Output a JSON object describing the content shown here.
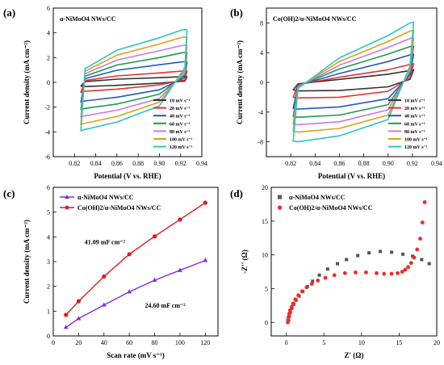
{
  "chart_data": [
    {
      "panel_label": "(a)",
      "type": "line",
      "subtype": "cyclic-voltammetry",
      "title": "α-NiMoO4 NWs/CC",
      "xlabel": "Potential (V vs. RHE)",
      "ylabel": "Current density (mA cm⁻²)",
      "xlim": [
        0.8,
        0.94
      ],
      "ylim": [
        -6,
        6
      ],
      "xticks": [
        0.82,
        0.84,
        0.86,
        0.88,
        0.9,
        0.92,
        0.94
      ],
      "yticks": [
        -6,
        -4,
        -2,
        0,
        2,
        4,
        6
      ],
      "legend_position": "bottom-right",
      "series": [
        {
          "name": "10 mV s⁻¹",
          "color": "#333333",
          "x_range": [
            0.826,
            0.926
          ],
          "anodic": [
            [
              0.826,
              -0.3
            ],
            [
              0.83,
              0.06
            ],
            [
              0.86,
              0.26
            ],
            [
              0.9,
              0.38
            ],
            [
              0.922,
              0.46
            ],
            [
              0.926,
              0.46
            ]
          ],
          "cathodic": [
            [
              0.926,
              0.46
            ],
            [
              0.924,
              0.1
            ],
            [
              0.9,
              -0.06
            ],
            [
              0.86,
              -0.24
            ],
            [
              0.83,
              -0.34
            ],
            [
              0.826,
              -0.3
            ]
          ]
        },
        {
          "name": "20 mV s⁻¹",
          "color": "#e8312a",
          "x_range": [
            0.826,
            0.926
          ],
          "anodic": [
            [
              0.826,
              -0.8
            ],
            [
              0.83,
              0.15
            ],
            [
              0.86,
              0.52
            ],
            [
              0.9,
              0.76
            ],
            [
              0.922,
              0.92
            ],
            [
              0.926,
              0.92
            ]
          ],
          "cathodic": [
            [
              0.926,
              0.92
            ],
            [
              0.924,
              0.2
            ],
            [
              0.9,
              -0.2
            ],
            [
              0.86,
              -0.55
            ],
            [
              0.83,
              -0.72
            ],
            [
              0.826,
              -0.8
            ]
          ]
        },
        {
          "name": "40 mV s⁻¹",
          "color": "#2457c5",
          "x_range": [
            0.826,
            0.926
          ],
          "anodic": [
            [
              0.826,
              -1.6
            ],
            [
              0.83,
              0.3
            ],
            [
              0.86,
              0.98
            ],
            [
              0.9,
              1.42
            ],
            [
              0.922,
              1.66
            ],
            [
              0.926,
              1.66
            ]
          ],
          "cathodic": [
            [
              0.926,
              1.66
            ],
            [
              0.924,
              0.4
            ],
            [
              0.9,
              -0.6
            ],
            [
              0.86,
              -1.2
            ],
            [
              0.83,
              -1.5
            ],
            [
              0.826,
              -1.6
            ]
          ]
        },
        {
          "name": "60 mV s⁻¹",
          "color": "#1e9b4d",
          "x_range": [
            0.826,
            0.926
          ],
          "anodic": [
            [
              0.826,
              -2.2
            ],
            [
              0.83,
              0.5
            ],
            [
              0.86,
              1.4
            ],
            [
              0.9,
              2.0
            ],
            [
              0.922,
              2.4
            ],
            [
              0.926,
              2.4
            ]
          ],
          "cathodic": [
            [
              0.926,
              2.4
            ],
            [
              0.924,
              0.6
            ],
            [
              0.9,
              -0.95
            ],
            [
              0.86,
              -1.75
            ],
            [
              0.83,
              -2.1
            ],
            [
              0.826,
              -2.2
            ]
          ]
        },
        {
          "name": "80 mV s⁻¹",
          "color": "#c47be0",
          "x_range": [
            0.826,
            0.926
          ],
          "anodic": [
            [
              0.826,
              -2.8
            ],
            [
              0.83,
              0.7
            ],
            [
              0.86,
              1.8
            ],
            [
              0.9,
              2.55
            ],
            [
              0.922,
              3.0
            ],
            [
              0.926,
              3.0
            ]
          ],
          "cathodic": [
            [
              0.926,
              3.0
            ],
            [
              0.924,
              0.8
            ],
            [
              0.9,
              -1.3
            ],
            [
              0.86,
              -2.25
            ],
            [
              0.83,
              -2.7
            ],
            [
              0.826,
              -2.8
            ]
          ]
        },
        {
          "name": "100 mV s⁻¹",
          "color": "#d8a21a",
          "x_range": [
            0.826,
            0.926
          ],
          "anodic": [
            [
              0.826,
              -3.4
            ],
            [
              0.83,
              0.9
            ],
            [
              0.86,
              2.2
            ],
            [
              0.9,
              3.1
            ],
            [
              0.922,
              3.65
            ],
            [
              0.926,
              3.65
            ]
          ],
          "cathodic": [
            [
              0.926,
              3.65
            ],
            [
              0.924,
              1.0
            ],
            [
              0.9,
              -1.6
            ],
            [
              0.86,
              -2.75
            ],
            [
              0.83,
              -3.3
            ],
            [
              0.826,
              -3.4
            ]
          ]
        },
        {
          "name": "120 mV s⁻¹",
          "color": "#2ec4c4",
          "x_range": [
            0.826,
            0.926
          ],
          "anodic": [
            [
              0.826,
              -3.9
            ],
            [
              0.83,
              1.1
            ],
            [
              0.86,
              2.6
            ],
            [
              0.9,
              3.6
            ],
            [
              0.922,
              4.25
            ],
            [
              0.926,
              4.25
            ]
          ],
          "cathodic": [
            [
              0.926,
              4.25
            ],
            [
              0.924,
              1.2
            ],
            [
              0.9,
              -1.9
            ],
            [
              0.86,
              -3.2
            ],
            [
              0.83,
              -3.8
            ],
            [
              0.826,
              -3.9
            ]
          ]
        }
      ]
    },
    {
      "panel_label": "(b)",
      "type": "line",
      "subtype": "cyclic-voltammetry",
      "title": "Co(OH)2/α-NiMoO4 NWs/CC",
      "xlabel": "Potential (V vs. RHE)",
      "ylabel": "Current density (mA cm⁻²)",
      "xlim": [
        0.8,
        0.94
      ],
      "ylim": [
        -10,
        10
      ],
      "xticks": [
        0.82,
        0.84,
        0.86,
        0.88,
        0.9,
        0.92,
        0.94
      ],
      "yticks": [
        -8,
        -4,
        0,
        4,
        8
      ],
      "legend_position": "bottom-right",
      "series": [
        {
          "name": "10 mV s⁻¹",
          "color": "#333333",
          "anodic": [
            [
              0.822,
              -1.0
            ],
            [
              0.826,
              -0.2
            ],
            [
              0.86,
              0.4
            ],
            [
              0.9,
              1.1
            ],
            [
              0.918,
              1.6
            ],
            [
              0.921,
              1.7
            ]
          ],
          "cathodic": [
            [
              0.921,
              1.7
            ],
            [
              0.918,
              0.4
            ],
            [
              0.9,
              -0.6
            ],
            [
              0.86,
              -1.1
            ],
            [
              0.826,
              -1.15
            ],
            [
              0.822,
              -1.0
            ]
          ]
        },
        {
          "name": "20 mV s⁻¹",
          "color": "#e8312a",
          "anodic": [
            [
              0.822,
              -2.0
            ],
            [
              0.826,
              -0.3
            ],
            [
              0.86,
              0.7
            ],
            [
              0.9,
              1.7
            ],
            [
              0.918,
              2.4
            ],
            [
              0.921,
              2.5
            ]
          ],
          "cathodic": [
            [
              0.921,
              2.5
            ],
            [
              0.918,
              0.6
            ],
            [
              0.9,
              -1.2
            ],
            [
              0.86,
              -2.0
            ],
            [
              0.826,
              -2.1
            ],
            [
              0.822,
              -2.0
            ]
          ]
        },
        {
          "name": "40 mV s⁻¹",
          "color": "#2457c5",
          "anodic": [
            [
              0.822,
              -3.5
            ],
            [
              0.826,
              -0.4
            ],
            [
              0.86,
              1.2
            ],
            [
              0.9,
              2.8
            ],
            [
              0.918,
              3.7
            ],
            [
              0.921,
              3.8
            ]
          ],
          "cathodic": [
            [
              0.921,
              3.8
            ],
            [
              0.918,
              1.0
            ],
            [
              0.9,
              -2.2
            ],
            [
              0.86,
              -3.3
            ],
            [
              0.826,
              -3.6
            ],
            [
              0.822,
              -3.5
            ]
          ]
        },
        {
          "name": "60 mV s⁻¹",
          "color": "#1e9b4d",
          "anodic": [
            [
              0.822,
              -4.6
            ],
            [
              0.826,
              -0.5
            ],
            [
              0.86,
              1.8
            ],
            [
              0.9,
              3.8
            ],
            [
              0.918,
              4.8
            ],
            [
              0.921,
              4.9
            ]
          ],
          "cathodic": [
            [
              0.921,
              4.9
            ],
            [
              0.918,
              1.3
            ],
            [
              0.9,
              -3.0
            ],
            [
              0.86,
              -4.4
            ],
            [
              0.826,
              -4.7
            ],
            [
              0.822,
              -4.6
            ]
          ]
        },
        {
          "name": "80 mV s⁻¹",
          "color": "#c47be0",
          "anodic": [
            [
              0.822,
              -5.6
            ],
            [
              0.826,
              -0.6
            ],
            [
              0.86,
              2.3
            ],
            [
              0.9,
              4.7
            ],
            [
              0.918,
              5.9
            ],
            [
              0.921,
              6.0
            ]
          ],
          "cathodic": [
            [
              0.921,
              6.0
            ],
            [
              0.918,
              1.6
            ],
            [
              0.9,
              -3.7
            ],
            [
              0.86,
              -5.3
            ],
            [
              0.826,
              -5.7
            ],
            [
              0.822,
              -5.6
            ]
          ]
        },
        {
          "name": "100 mV s⁻¹",
          "color": "#d8a21a",
          "anodic": [
            [
              0.822,
              -6.6
            ],
            [
              0.826,
              -0.7
            ],
            [
              0.86,
              2.8
            ],
            [
              0.9,
              5.5
            ],
            [
              0.918,
              6.9
            ],
            [
              0.921,
              7.0
            ]
          ],
          "cathodic": [
            [
              0.921,
              7.0
            ],
            [
              0.918,
              1.9
            ],
            [
              0.9,
              -4.4
            ],
            [
              0.86,
              -6.2
            ],
            [
              0.826,
              -6.7
            ],
            [
              0.822,
              -6.6
            ]
          ]
        },
        {
          "name": "120 mV s⁻¹",
          "color": "#2ec4c4",
          "anodic": [
            [
              0.822,
              -7.9
            ],
            [
              0.826,
              -0.8
            ],
            [
              0.86,
              3.3
            ],
            [
              0.9,
              6.3
            ],
            [
              0.918,
              8.0
            ],
            [
              0.921,
              8.1
            ]
          ],
          "cathodic": [
            [
              0.921,
              8.1
            ],
            [
              0.918,
              2.2
            ],
            [
              0.9,
              -5.0
            ],
            [
              0.86,
              -7.2
            ],
            [
              0.826,
              -8.0
            ],
            [
              0.822,
              -7.9
            ]
          ]
        }
      ]
    },
    {
      "panel_label": "(c)",
      "type": "line",
      "title": "",
      "xlabel": "Scan rate (mV s⁻¹)",
      "ylabel": "Current density (mA cm⁻²)",
      "xlim": [
        0,
        130
      ],
      "ylim": [
        0,
        6
      ],
      "xticks": [
        0,
        20,
        40,
        60,
        80,
        100,
        120
      ],
      "yticks": [
        0,
        1,
        2,
        3,
        4,
        5,
        6
      ],
      "legend_position": "top-left",
      "series": [
        {
          "name": "α-NiMoO4 NWs/CC",
          "color": "#8a2be2",
          "marker": "triangle",
          "x": [
            10,
            20,
            40,
            60,
            80,
            100,
            120
          ],
          "y": [
            0.35,
            0.7,
            1.25,
            1.78,
            2.25,
            2.65,
            3.05
          ]
        },
        {
          "name": "Co(OH)2/α-NiMoO4 NWs/CC",
          "color": "#e8141e",
          "marker": "circle",
          "x": [
            10,
            20,
            40,
            60,
            80,
            100,
            120
          ],
          "y": [
            0.85,
            1.4,
            2.4,
            3.3,
            4.02,
            4.7,
            5.38
          ]
        }
      ],
      "annotations": [
        {
          "text": "41.09 mF cm⁻²",
          "series": "Co(OH)2/α-NiMoO4 NWs/CC"
        },
        {
          "text": "24.60 mF cm⁻²",
          "series": "α-NiMoO4 NWs/CC"
        }
      ]
    },
    {
      "panel_label": "(d)",
      "type": "scatter",
      "title": "",
      "xlabel": "Z' (Ω)",
      "ylabel": "-Z'' (Ω)",
      "xlim": [
        -2,
        20
      ],
      "ylim": [
        -2,
        20
      ],
      "xticks": [
        0,
        5,
        10,
        15,
        20
      ],
      "yticks": [
        0,
        5,
        10,
        15,
        20
      ],
      "legend_position": "top-left",
      "series": [
        {
          "name": "α-NiMoO4 NWs/CC",
          "color": "#555555",
          "marker": "square",
          "x": [
            0.3,
            0.4,
            0.55,
            0.75,
            1.0,
            1.3,
            1.7,
            2.2,
            2.8,
            3.5,
            4.4,
            5.5,
            6.8,
            8.0,
            9.5,
            11.0,
            12.5,
            14.0,
            15.5,
            16.8,
            18.0,
            19.0
          ],
          "y": [
            0.3,
            0.9,
            1.5,
            2.1,
            2.7,
            3.3,
            3.9,
            4.6,
            5.3,
            6.1,
            7.0,
            7.9,
            8.7,
            9.3,
            9.9,
            10.3,
            10.5,
            10.4,
            10.1,
            9.8,
            9.3,
            8.7
          ]
        },
        {
          "name": "Co(OH)2/α-NiMoO4 NWs/CC",
          "color": "#ee2a2a",
          "marker": "circle",
          "x": [
            0.2,
            0.25,
            0.3,
            0.4,
            0.5,
            0.7,
            0.9,
            1.2,
            1.6,
            2.1,
            2.7,
            3.4,
            4.2,
            5.2,
            6.4,
            7.8,
            9.2,
            10.6,
            12.0,
            13.0,
            14.0,
            14.8,
            15.4,
            15.8,
            16.2,
            16.6,
            17.0,
            17.4,
            17.8,
            18.1,
            18.4
          ],
          "y": [
            0.0,
            0.4,
            0.8,
            1.3,
            1.8,
            2.3,
            2.8,
            3.4,
            4.0,
            4.6,
            5.2,
            5.7,
            6.2,
            6.6,
            7.0,
            7.3,
            7.4,
            7.4,
            7.3,
            7.2,
            7.2,
            7.3,
            7.5,
            7.8,
            8.2,
            8.8,
            9.6,
            10.8,
            12.4,
            14.8,
            17.8
          ]
        }
      ]
    }
  ]
}
